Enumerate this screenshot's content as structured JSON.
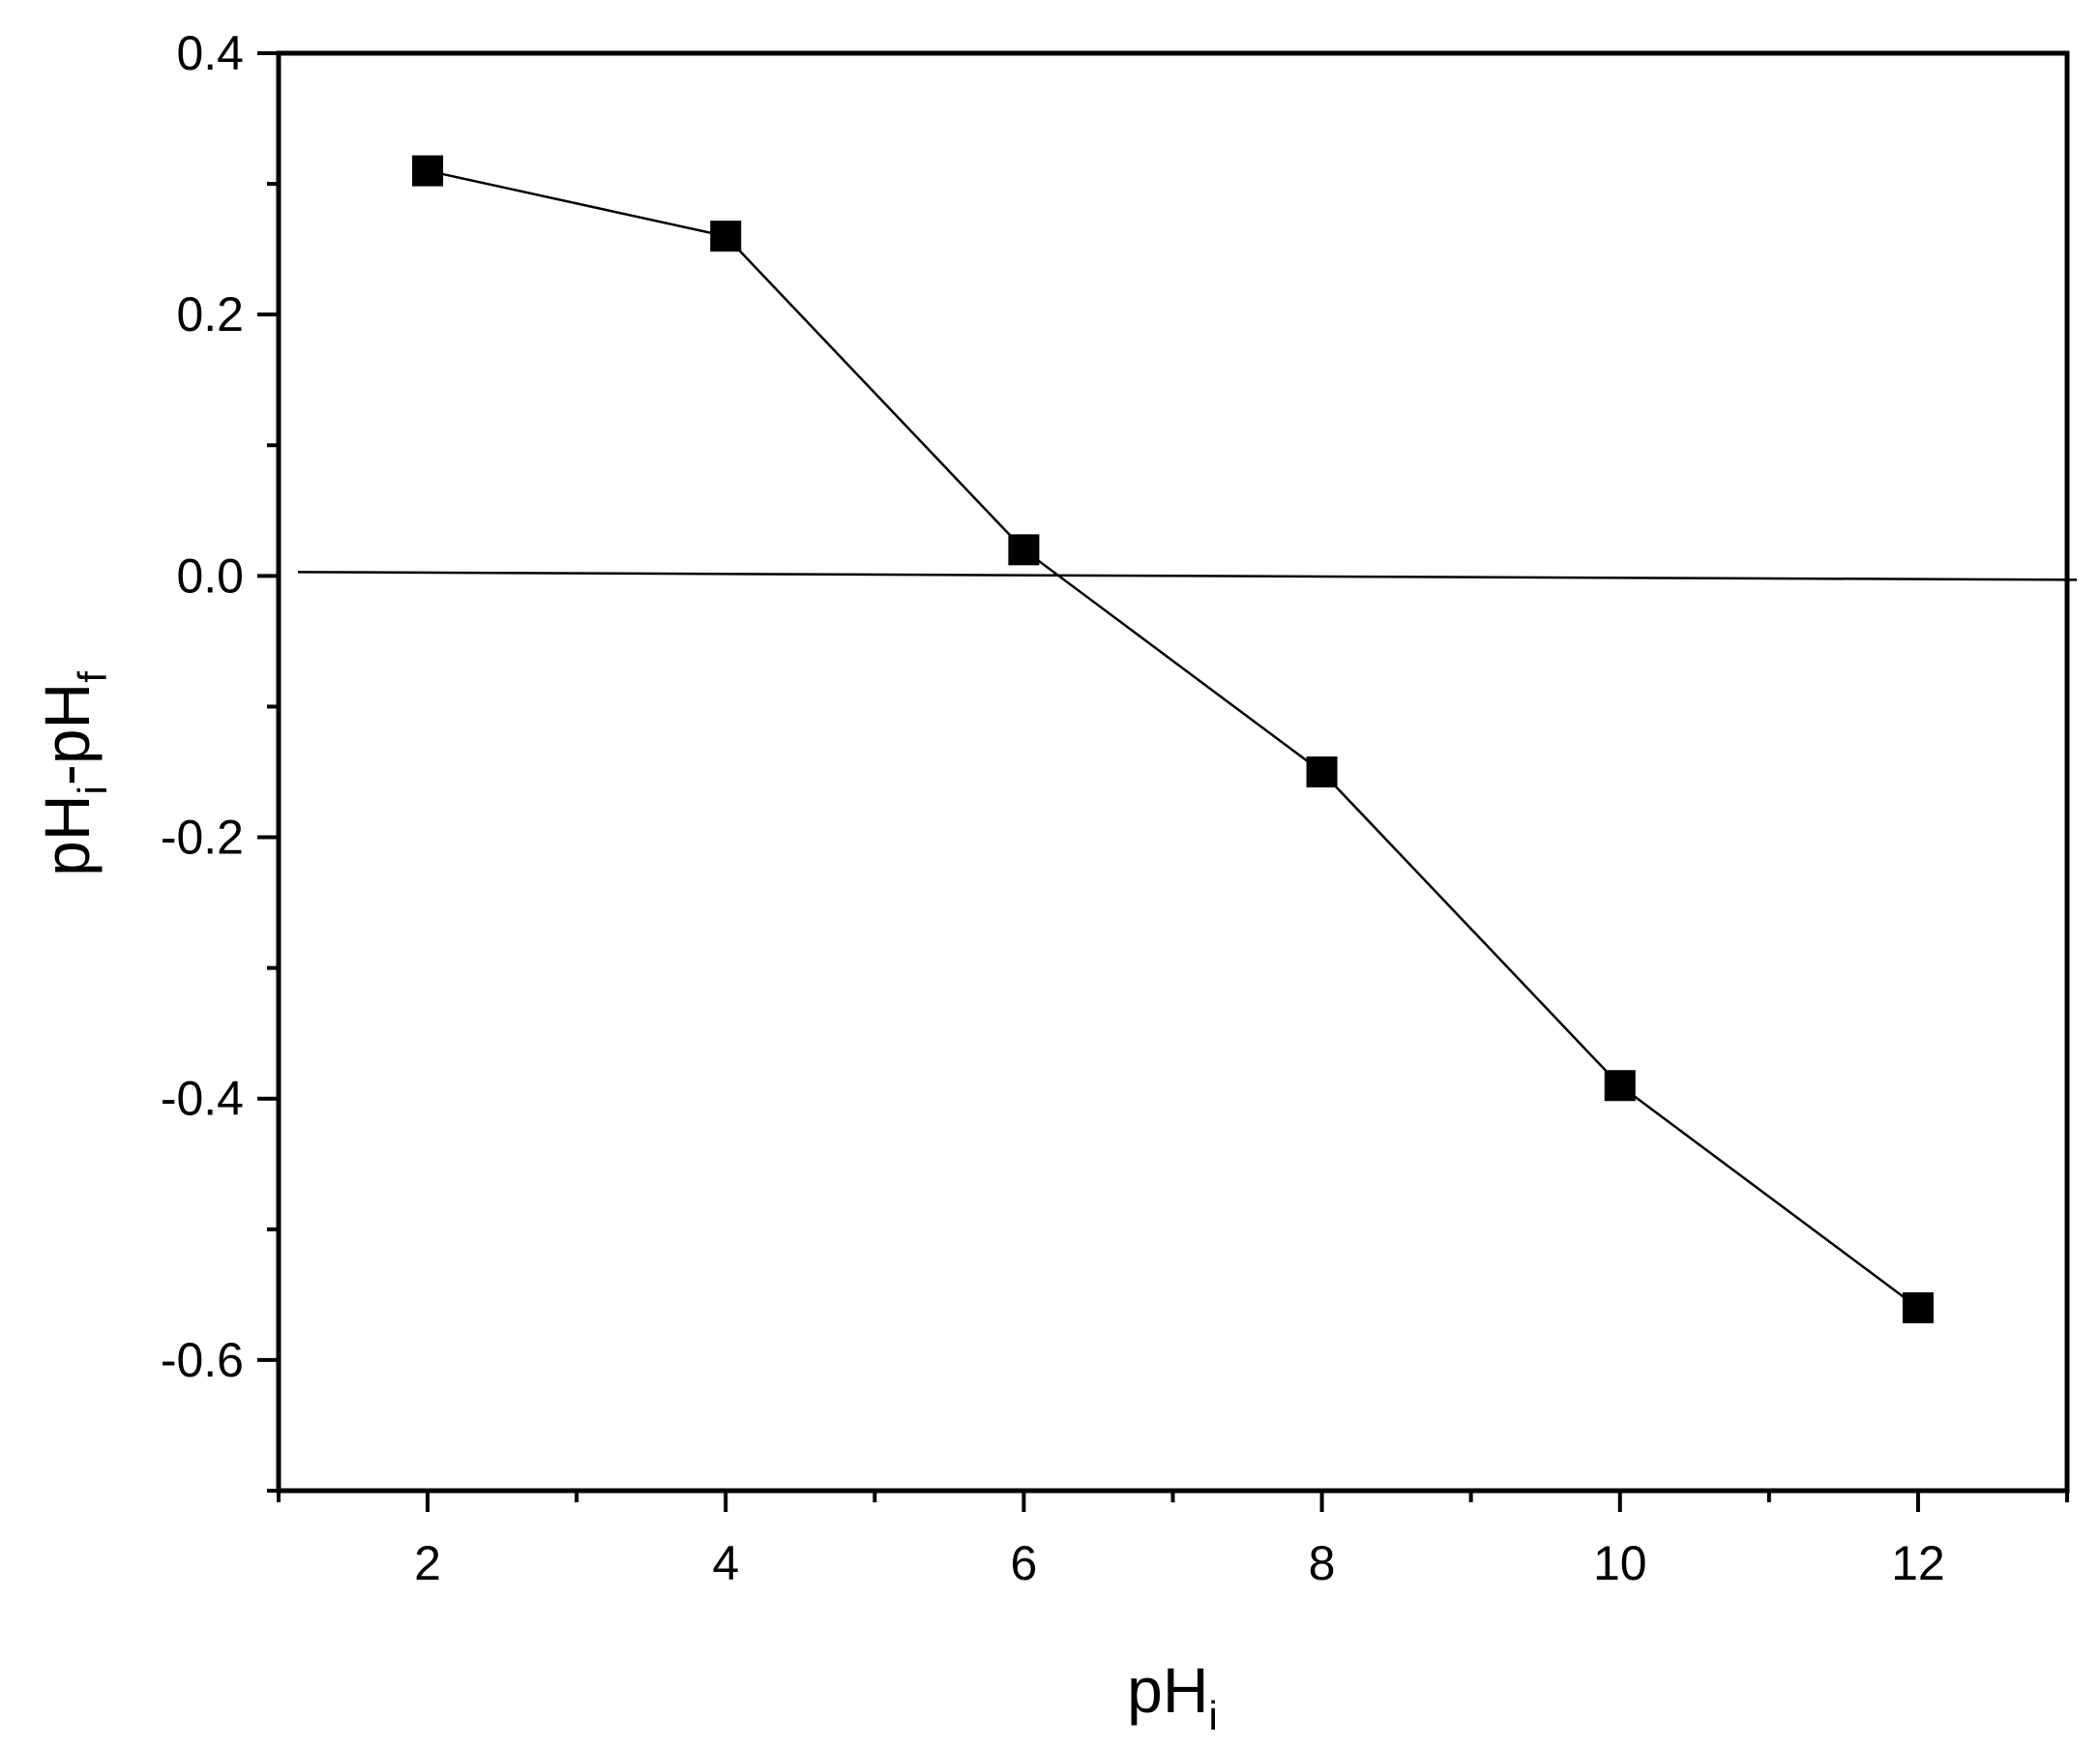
{
  "chart_data": {
    "type": "line",
    "title": "",
    "xlabel": {
      "base": "pH",
      "sub": "i"
    },
    "ylabel": {
      "base1": "pH",
      "sub1": "i",
      "sep": "-",
      "base2": "pH",
      "sub2": "f"
    },
    "xlim": [
      1,
      13
    ],
    "ylim": [
      -0.7,
      0.4
    ],
    "x_ticks": [
      2,
      4,
      6,
      8,
      10,
      12
    ],
    "x_tick_labels": [
      "2",
      "4",
      "6",
      "8",
      "10",
      "12"
    ],
    "x_minor_ticks": [
      1,
      3,
      5,
      7,
      9,
      11,
      13
    ],
    "y_ticks": [
      -0.6,
      -0.4,
      -0.2,
      0.0,
      0.2,
      0.4
    ],
    "y_tick_labels": [
      "-0.6",
      "-0.4",
      "-0.2",
      "0.0",
      "0.2",
      "0.4"
    ],
    "y_minor_ticks": [
      -0.7,
      -0.5,
      -0.3,
      -0.1,
      0.1,
      0.3
    ],
    "grid": false,
    "legend": false,
    "series": [
      {
        "x": [
          2,
          4,
          6,
          8,
          10,
          12
        ],
        "y": [
          0.31,
          0.26,
          0.02,
          -0.15,
          -0.39,
          -0.56
        ],
        "marker": "square",
        "color": "#000000"
      }
    ],
    "reference_line": {
      "y": 0.0,
      "color": "#000000"
    }
  }
}
